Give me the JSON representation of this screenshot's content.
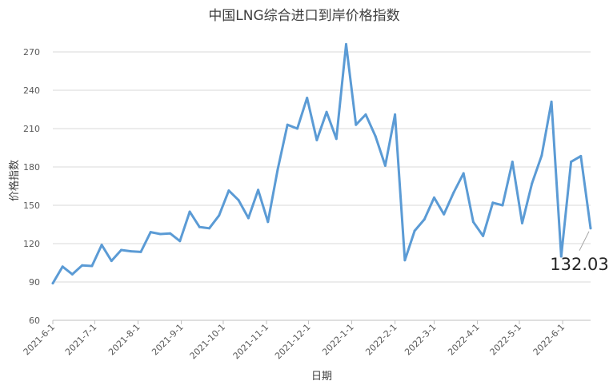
{
  "chart_data": {
    "type": "line",
    "title": "中国LNG综合进口到岸价格指数",
    "xlabel": "日期",
    "ylabel": "价格指数",
    "ylim": [
      60,
      270
    ],
    "yticks": [
      60,
      90,
      120,
      150,
      180,
      210,
      240,
      270
    ],
    "grid": true,
    "legend": "none",
    "series_color": "#5b9bd5",
    "x_tick_labels": [
      "2021-6-1",
      "2021-7-1",
      "2021-8-1",
      "2021-9-1",
      "2021-10-1",
      "2021-11-1",
      "2021-12-1",
      "2022-1-1",
      "2022-2-1",
      "2022-3-1",
      "2022-4-1",
      "2022-5-1",
      "2022-6-1"
    ],
    "x": [
      "2021-6-1",
      "2021-6-8",
      "2021-6-15",
      "2021-6-22",
      "2021-6-29",
      "2021-7-6",
      "2021-7-13",
      "2021-7-20",
      "2021-7-27",
      "2021-8-3",
      "2021-8-10",
      "2021-8-17",
      "2021-8-24",
      "2021-8-31",
      "2021-9-7",
      "2021-9-14",
      "2021-9-21",
      "2021-9-28",
      "2021-10-5",
      "2021-10-12",
      "2021-10-19",
      "2021-10-26",
      "2021-11-2",
      "2021-11-9",
      "2021-11-16",
      "2021-11-23",
      "2021-11-30",
      "2021-12-7",
      "2021-12-14",
      "2021-12-21",
      "2021-12-28",
      "2022-1-4",
      "2022-1-11",
      "2022-1-18",
      "2022-1-25",
      "2022-2-1",
      "2022-2-8",
      "2022-2-15",
      "2022-2-22",
      "2022-3-1",
      "2022-3-8",
      "2022-3-15",
      "2022-3-22",
      "2022-3-29",
      "2022-4-5",
      "2022-4-12",
      "2022-4-19",
      "2022-4-26",
      "2022-5-3",
      "2022-5-10",
      "2022-5-17",
      "2022-5-24",
      "2022-5-31",
      "2022-6-7",
      "2022-6-14",
      "2022-6-21"
    ],
    "values": [
      89,
      102,
      96,
      103,
      102.5,
      119,
      106.5,
      115,
      114,
      113.5,
      129,
      127.5,
      128,
      122,
      145,
      133,
      132,
      142,
      161.5,
      154,
      140,
      162,
      137,
      178,
      213,
      210,
      234,
      201,
      223,
      202,
      276,
      213,
      221,
      204,
      181,
      221,
      107,
      130,
      139,
      156,
      143,
      160,
      175,
      137,
      126,
      152,
      150,
      184,
      136,
      167,
      189,
      231,
      110,
      184,
      188.5,
      132.03
    ],
    "annotation": "132.03"
  }
}
